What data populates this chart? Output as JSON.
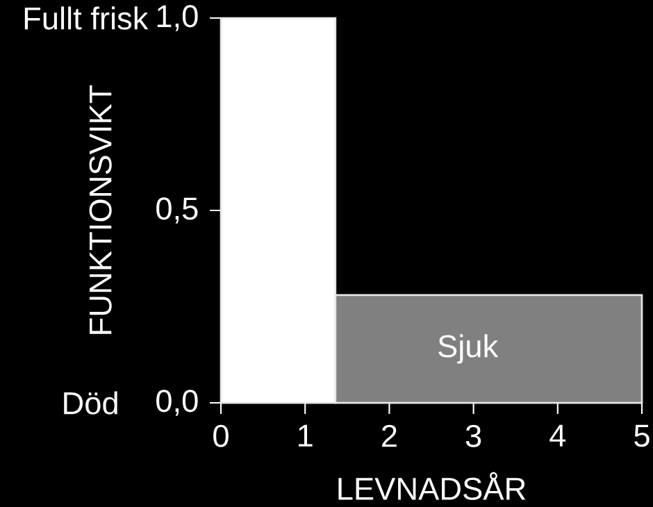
{
  "chart_data": {
    "type": "area",
    "xlabel": "LEVNADSÅR",
    "ylabel": "FUNKTIONSVIKT",
    "series": [
      {
        "color": "#ffffff",
        "x": [
          0,
          1.36
        ],
        "values": [
          1.0,
          1.0
        ]
      },
      {
        "color": "#808080",
        "x": [
          1.36,
          5
        ],
        "values": [
          0.28,
          0.28
        ]
      }
    ],
    "xlim": [
      0,
      5
    ],
    "ylim": [
      0,
      1
    ],
    "xticks": [
      0,
      1,
      2,
      3,
      4,
      5
    ],
    "yticks": [
      {
        "value": 0,
        "label": "0,0"
      },
      {
        "value": 0.5,
        "label": "0,5"
      },
      {
        "value": 1,
        "label": "1,0"
      }
    ],
    "annotations": [
      "Död",
      "Fullt frisk",
      "Sjuk"
    ]
  }
}
